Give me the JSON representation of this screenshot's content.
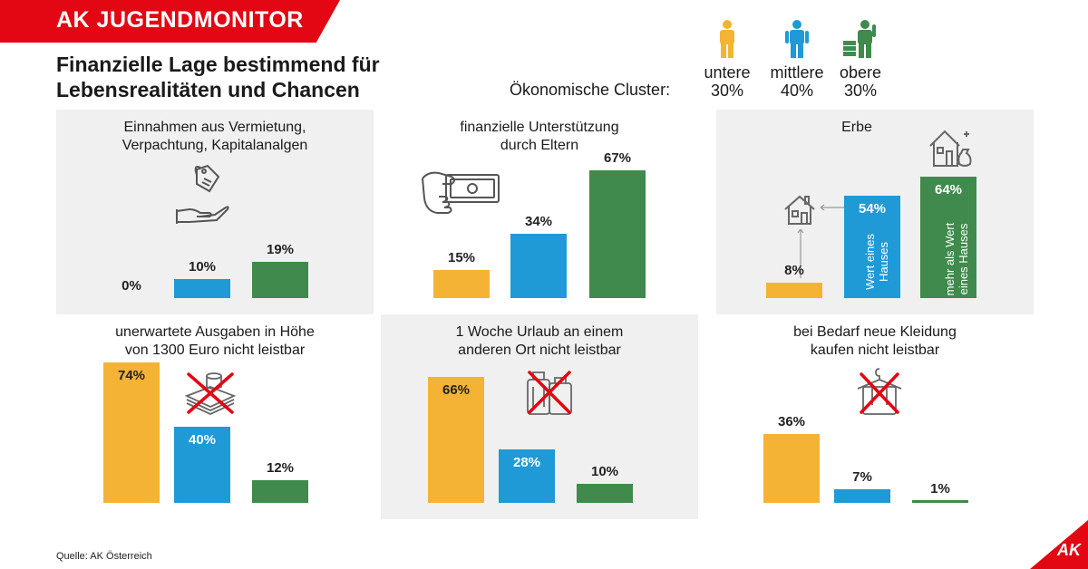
{
  "header": {
    "brand": "AK JUGENDMONITOR",
    "headline_line1": "Finanzielle Lage bestimmend für",
    "headline_line2": "Lebensrealitäten und Chancen"
  },
  "legend": {
    "label": "Ökonomische Cluster:",
    "items": [
      {
        "name": "untere",
        "share": "30%",
        "color": "#f5b335",
        "icon": "person-icon"
      },
      {
        "name": "mittlere",
        "share": "40%",
        "color": "#1f9ad6",
        "icon": "person-icon"
      },
      {
        "name": "obere",
        "share": "30%",
        "color": "#3f8a4c",
        "icon": "person-with-money-icon"
      }
    ]
  },
  "colors": {
    "untere": "#f5b335",
    "mittlere": "#1f9ad6",
    "obere": "#3f8a4c",
    "brand": "#e30613"
  },
  "chart_data": [
    {
      "type": "bar",
      "title": "Einnahmen aus Vermietung, Verpachtung, Kapitalanalgen",
      "title_lines": [
        "Einnahmen aus Vermietung,",
        "Verpachtung, Kapitalanalgen"
      ],
      "categories": [
        "untere",
        "mittlere",
        "obere"
      ],
      "values": [
        0,
        10,
        19
      ],
      "labels": [
        "0%",
        "10%",
        "19%"
      ],
      "icon": "hand-with-price-tag-icon"
    },
    {
      "type": "bar",
      "title": "finanzielle Unterstützung durch Eltern",
      "title_lines": [
        "finanzielle Unterstützung",
        "durch Eltern"
      ],
      "categories": [
        "untere",
        "mittlere",
        "obere"
      ],
      "values": [
        15,
        34,
        67
      ],
      "labels": [
        "15%",
        "34%",
        "67%"
      ],
      "icon": "hand-with-banknote-icon"
    },
    {
      "type": "bar",
      "title": "Erbe",
      "title_lines": [
        "Erbe"
      ],
      "categories": [
        "untere",
        "mittlere",
        "obere"
      ],
      "values": [
        8,
        54,
        64
      ],
      "labels": [
        "8%",
        "54%",
        "64%"
      ],
      "bar_texts": [
        "",
        "Wert eines Hauses",
        "mehr als Wert eines Hauses"
      ],
      "icon": "house-icon"
    },
    {
      "type": "bar",
      "title": "unerwartete Ausgaben in Höhe von 1300 Euro nicht leistbar",
      "title_lines": [
        "unerwartete Ausgaben in Höhe",
        "von 1300 Euro nicht leistbar"
      ],
      "categories": [
        "untere",
        "mittlere",
        "obere"
      ],
      "values": [
        74,
        40,
        12
      ],
      "labels": [
        "74%",
        "40%",
        "12%"
      ],
      "icon": "crossed-money-icon"
    },
    {
      "type": "bar",
      "title": "1 Woche Urlaub an einem anderen Ort nicht leistbar",
      "title_lines": [
        "1 Woche Urlaub an einem",
        "anderen Ort nicht leistbar"
      ],
      "categories": [
        "untere",
        "mittlere",
        "obere"
      ],
      "values": [
        66,
        28,
        10
      ],
      "labels": [
        "66%",
        "28%",
        "10%"
      ],
      "icon": "crossed-suitcase-icon"
    },
    {
      "type": "bar",
      "title": "bei Bedarf neue Kleidung kaufen nicht leistbar",
      "title_lines": [
        "bei Bedarf neue Kleidung",
        "kaufen nicht leistbar"
      ],
      "categories": [
        "untere",
        "mittlere",
        "obere"
      ],
      "values": [
        36,
        7,
        1
      ],
      "labels": [
        "36%",
        "7%",
        "1%"
      ],
      "icon": "crossed-shirt-icon"
    }
  ],
  "footer": {
    "source": "Quelle: AK Österreich",
    "logo": "AK"
  }
}
